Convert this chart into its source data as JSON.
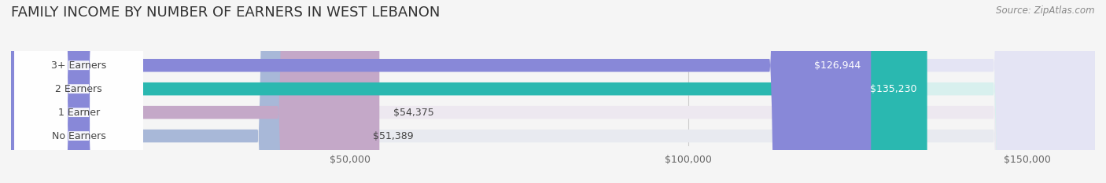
{
  "title": "FAMILY INCOME BY NUMBER OF EARNERS IN WEST LEBANON",
  "source": "Source: ZipAtlas.com",
  "categories": [
    "No Earners",
    "1 Earner",
    "2 Earners",
    "3+ Earners"
  ],
  "values": [
    51389,
    54375,
    135230,
    126944
  ],
  "bar_colors": [
    "#a8b8d8",
    "#c4a8c8",
    "#2ab8b0",
    "#8888d8"
  ],
  "background_colors": [
    "#e8eaf0",
    "#ede8f0",
    "#d8f0ee",
    "#e4e4f4"
  ],
  "label_colors": [
    "#555555",
    "#555555",
    "#ffffff",
    "#ffffff"
  ],
  "x_max": 160000,
  "x_ticks": [
    0,
    50000,
    100000,
    150000
  ],
  "x_tick_labels": [
    "",
    "$50,000",
    "$100,000",
    "$150,000"
  ],
  "bar_height": 0.55,
  "figsize": [
    14.06,
    2.33
  ],
  "dpi": 100,
  "title_fontsize": 13,
  "source_fontsize": 8.5,
  "label_fontsize": 9,
  "tick_fontsize": 9,
  "category_fontsize": 9
}
